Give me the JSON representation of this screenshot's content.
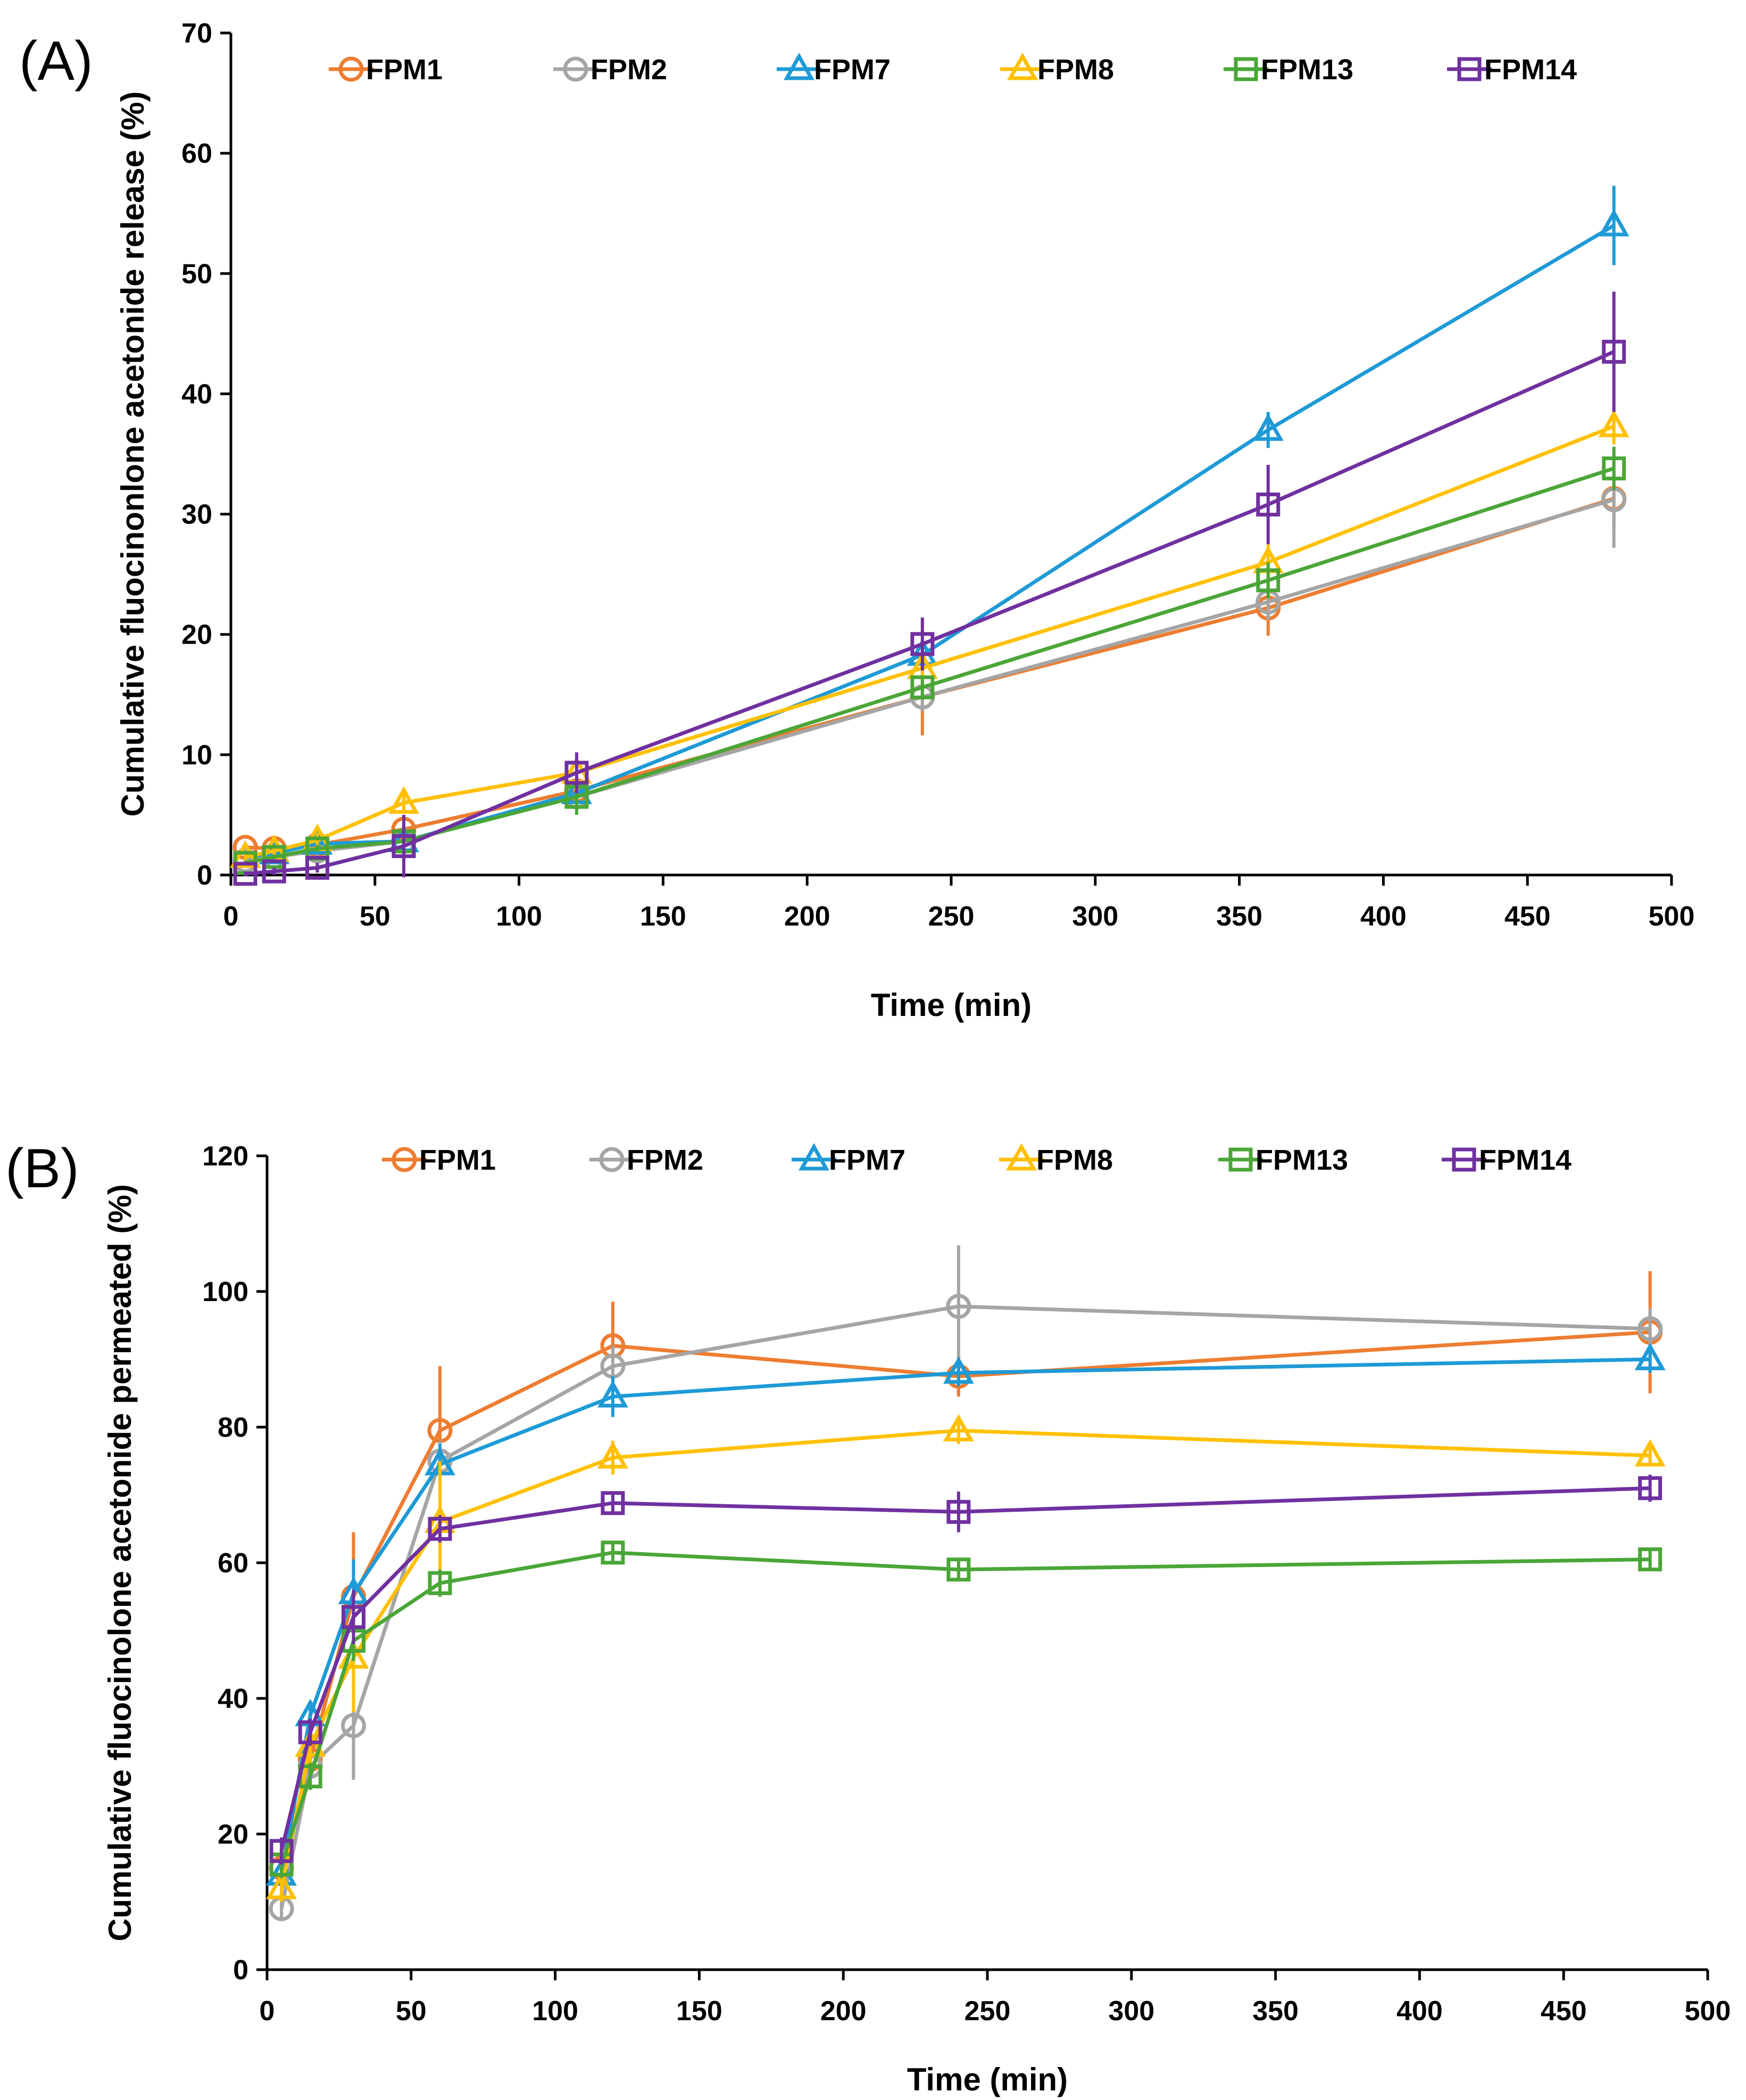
{
  "colors": {
    "FPM1": "#ED7D31",
    "FPM2": "#A5A5A5",
    "FPM7": "#1E9AD6",
    "FPM8": "#FFC000",
    "FPM13": "#4AA637",
    "FPM14": "#7030A0"
  },
  "chart_data": [
    {
      "panel_label": "(A)",
      "type": "line",
      "xlabel": "Time (min)",
      "ylabel": "Cumulative fluocinonlone acetonide release (%)",
      "xlim": [
        0,
        500
      ],
      "ylim": [
        0,
        70
      ],
      "xticks": [
        "0",
        "50",
        "100",
        "150",
        "200",
        "250",
        "300",
        "350",
        "400",
        "450",
        "500"
      ],
      "yticks": [
        "0",
        "10",
        "20",
        "30",
        "40",
        "50",
        "60",
        "70"
      ],
      "legend_position": "top",
      "x": [
        5,
        15,
        30,
        60,
        120,
        240,
        360,
        480
      ],
      "series": [
        {
          "name": "FPM1",
          "marker": "circle",
          "color": "#ED7D31",
          "values": [
            2.3,
            2.2,
            2.5,
            3.8,
            7.0,
            14.8,
            22.2,
            31.3
          ],
          "errors": [
            0.3,
            0.3,
            0.4,
            0.6,
            1.0,
            3.2,
            2.3,
            2.5
          ]
        },
        {
          "name": "FPM2",
          "marker": "circle",
          "color": "#A5A5A5",
          "values": [
            1.2,
            1.5,
            2.0,
            2.8,
            6.5,
            14.8,
            22.7,
            31.2
          ],
          "errors": [
            0.3,
            0.3,
            0.4,
            0.6,
            1.0,
            1.2,
            1.5,
            4.0
          ]
        },
        {
          "name": "FPM7",
          "marker": "triangle",
          "color": "#1E9AD6",
          "values": [
            1.5,
            1.8,
            2.6,
            2.8,
            6.8,
            18.3,
            37.0,
            54.0
          ],
          "errors": [
            0.2,
            0.2,
            0.3,
            0.5,
            0.8,
            1.0,
            1.5,
            3.3
          ]
        },
        {
          "name": "FPM8",
          "marker": "triangle",
          "color": "#FFC000",
          "values": [
            1.5,
            2.0,
            2.9,
            6.0,
            8.5,
            17.2,
            26.0,
            37.3
          ],
          "errors": [
            0.3,
            0.4,
            0.6,
            0.8,
            0.9,
            1.0,
            1.5,
            1.5
          ]
        },
        {
          "name": "FPM13",
          "marker": "square",
          "color": "#4AA637",
          "values": [
            1.0,
            1.5,
            2.2,
            2.8,
            6.5,
            15.6,
            24.5,
            33.8
          ],
          "errors": [
            0.2,
            0.2,
            0.3,
            0.5,
            1.5,
            1.0,
            1.5,
            1.8
          ]
        },
        {
          "name": "FPM14",
          "marker": "square",
          "color": "#7030A0",
          "values": [
            0.1,
            0.3,
            0.6,
            2.4,
            8.5,
            19.2,
            30.8,
            43.5
          ],
          "errors": [
            0.2,
            0.3,
            0.4,
            2.6,
            1.7,
            2.2,
            3.3,
            5.0
          ]
        }
      ]
    },
    {
      "panel_label": "(B)",
      "type": "line",
      "xlabel": "Time (min)",
      "ylabel": "Cumulative fluocinolone acetonide permeated (%)",
      "xlim": [
        0,
        500
      ],
      "ylim": [
        0,
        120
      ],
      "xticks": [
        "0",
        "50",
        "100",
        "150",
        "200",
        "250",
        "300",
        "350",
        "400",
        "450",
        "500"
      ],
      "yticks": [
        "0",
        "20",
        "40",
        "60",
        "80",
        "100",
        "120"
      ],
      "legend_position": "top",
      "x": [
        5,
        15,
        30,
        60,
        120,
        240,
        480
      ],
      "series": [
        {
          "name": "FPM1",
          "marker": "circle",
          "color": "#ED7D31",
          "values": [
            15.0,
            31.0,
            55.0,
            79.5,
            92.0,
            87.5,
            94.0
          ],
          "errors": [
            2.0,
            3.0,
            9.5,
            9.5,
            6.5,
            3.0,
            9.0
          ]
        },
        {
          "name": "FPM2",
          "marker": "circle",
          "color": "#A5A5A5",
          "values": [
            9.0,
            30.0,
            36.0,
            75.0,
            89.0,
            97.8,
            94.5
          ],
          "errors": [
            1.5,
            3.0,
            8.0,
            3.0,
            3.0,
            9.0,
            3.0
          ]
        },
        {
          "name": "FPM7",
          "marker": "triangle",
          "color": "#1E9AD6",
          "values": [
            14.0,
            37.5,
            55.5,
            74.5,
            84.5,
            88.0,
            90.0
          ],
          "errors": [
            2.0,
            2.0,
            5.0,
            3.0,
            3.0,
            2.0,
            2.0
          ]
        },
        {
          "name": "FPM8",
          "marker": "triangle",
          "color": "#FFC000",
          "values": [
            12.0,
            33.0,
            46.0,
            66.0,
            75.5,
            79.5,
            75.8
          ],
          "errors": [
            2.0,
            3.0,
            8.0,
            9.0,
            2.5,
            2.0,
            1.5
          ]
        },
        {
          "name": "FPM13",
          "marker": "square",
          "color": "#4AA637",
          "values": [
            15.5,
            28.5,
            48.5,
            57.0,
            61.5,
            59.0,
            60.5
          ],
          "errors": [
            2.0,
            2.0,
            3.0,
            2.0,
            1.5,
            1.5,
            1.5
          ]
        },
        {
          "name": "FPM14",
          "marker": "square",
          "color": "#7030A0",
          "values": [
            17.5,
            35.0,
            52.0,
            65.0,
            68.8,
            67.5,
            71.0
          ],
          "errors": [
            2.0,
            2.0,
            4.0,
            2.0,
            1.5,
            3.0,
            2.0
          ]
        }
      ]
    }
  ]
}
